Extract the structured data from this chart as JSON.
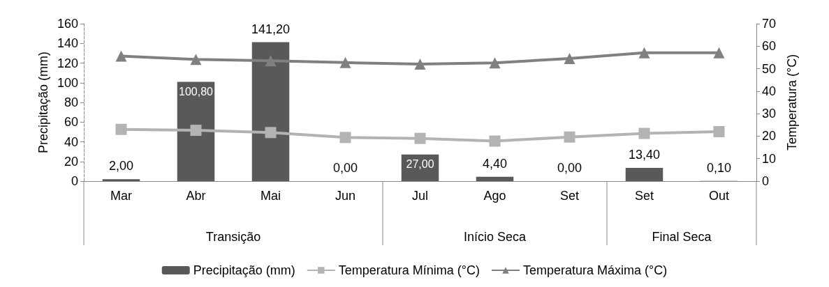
{
  "chart_data": {
    "type": "bar",
    "categories": [
      "Mar",
      "Abr",
      "Mai",
      "Jun",
      "Jul",
      "Ago",
      "Set",
      "Set",
      "Out"
    ],
    "ylabel": "Precipitação (mm)",
    "y2label": "Temperatura (°C)",
    "ylim": [
      0,
      160
    ],
    "yticks": [
      0,
      20,
      40,
      60,
      80,
      100,
      120,
      140,
      160
    ],
    "y2lim": [
      0,
      70
    ],
    "y2ticks": [
      0,
      10,
      20,
      30,
      40,
      50,
      60,
      70
    ],
    "series": [
      {
        "name": "Precipitação (mm)",
        "color": "#595959",
        "values": [
          2.0,
          100.8,
          141.2,
          0.0,
          27.0,
          4.4,
          0.0,
          13.4,
          0.1
        ],
        "value_labels": [
          "2,00",
          "100,80",
          "141,20",
          "0,00",
          "27,00",
          "4,40",
          "0,00",
          "13,40",
          "0,10"
        ]
      },
      {
        "name": "Temperatura Mínima (°C)",
        "type": "line",
        "axis": "y2",
        "marker": "square",
        "color": "#b3b3b3",
        "values": [
          23.0,
          22.6,
          21.6,
          19.4,
          19.0,
          17.8,
          19.6,
          21.2,
          22.0
        ]
      },
      {
        "name": "Temperatura Máxima (°C)",
        "type": "line",
        "axis": "y2",
        "marker": "triangle",
        "color": "#808080",
        "values": [
          55.6,
          54.1,
          53.5,
          52.7,
          52.0,
          52.6,
          54.5,
          57.1,
          57.1
        ]
      }
    ],
    "annotations": [
      "Transição",
      "Início Seca",
      "Final Seca"
    ],
    "grid": false,
    "legend": "bottom"
  }
}
